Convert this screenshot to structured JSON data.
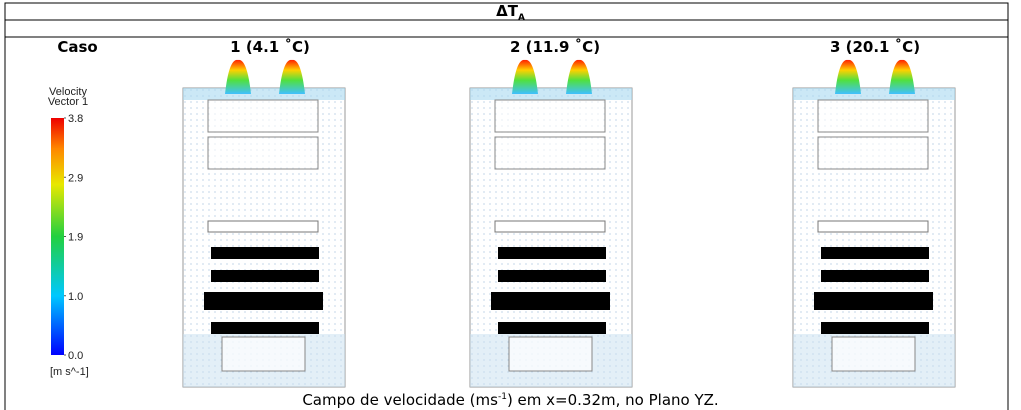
{
  "table": {
    "header": {
      "symbol": "ΔT",
      "subscript": "A"
    },
    "row_label": "Caso",
    "columns": [
      "1 (4.1 ˚C)",
      "2 (11.9 ˚C)",
      "3 (20.1 ˚C)"
    ]
  },
  "legend": {
    "title": [
      "Velocity",
      "Vector 1"
    ],
    "ticks": [
      "3.8",
      "2.9",
      "1.9",
      "1.0",
      "0.0"
    ],
    "unit": "[m s^-1]"
  },
  "caption": {
    "before": "Campo de velocidade (ms",
    "superscript": "-1",
    "after": ") em x=0.32m, no Plano YZ."
  }
}
